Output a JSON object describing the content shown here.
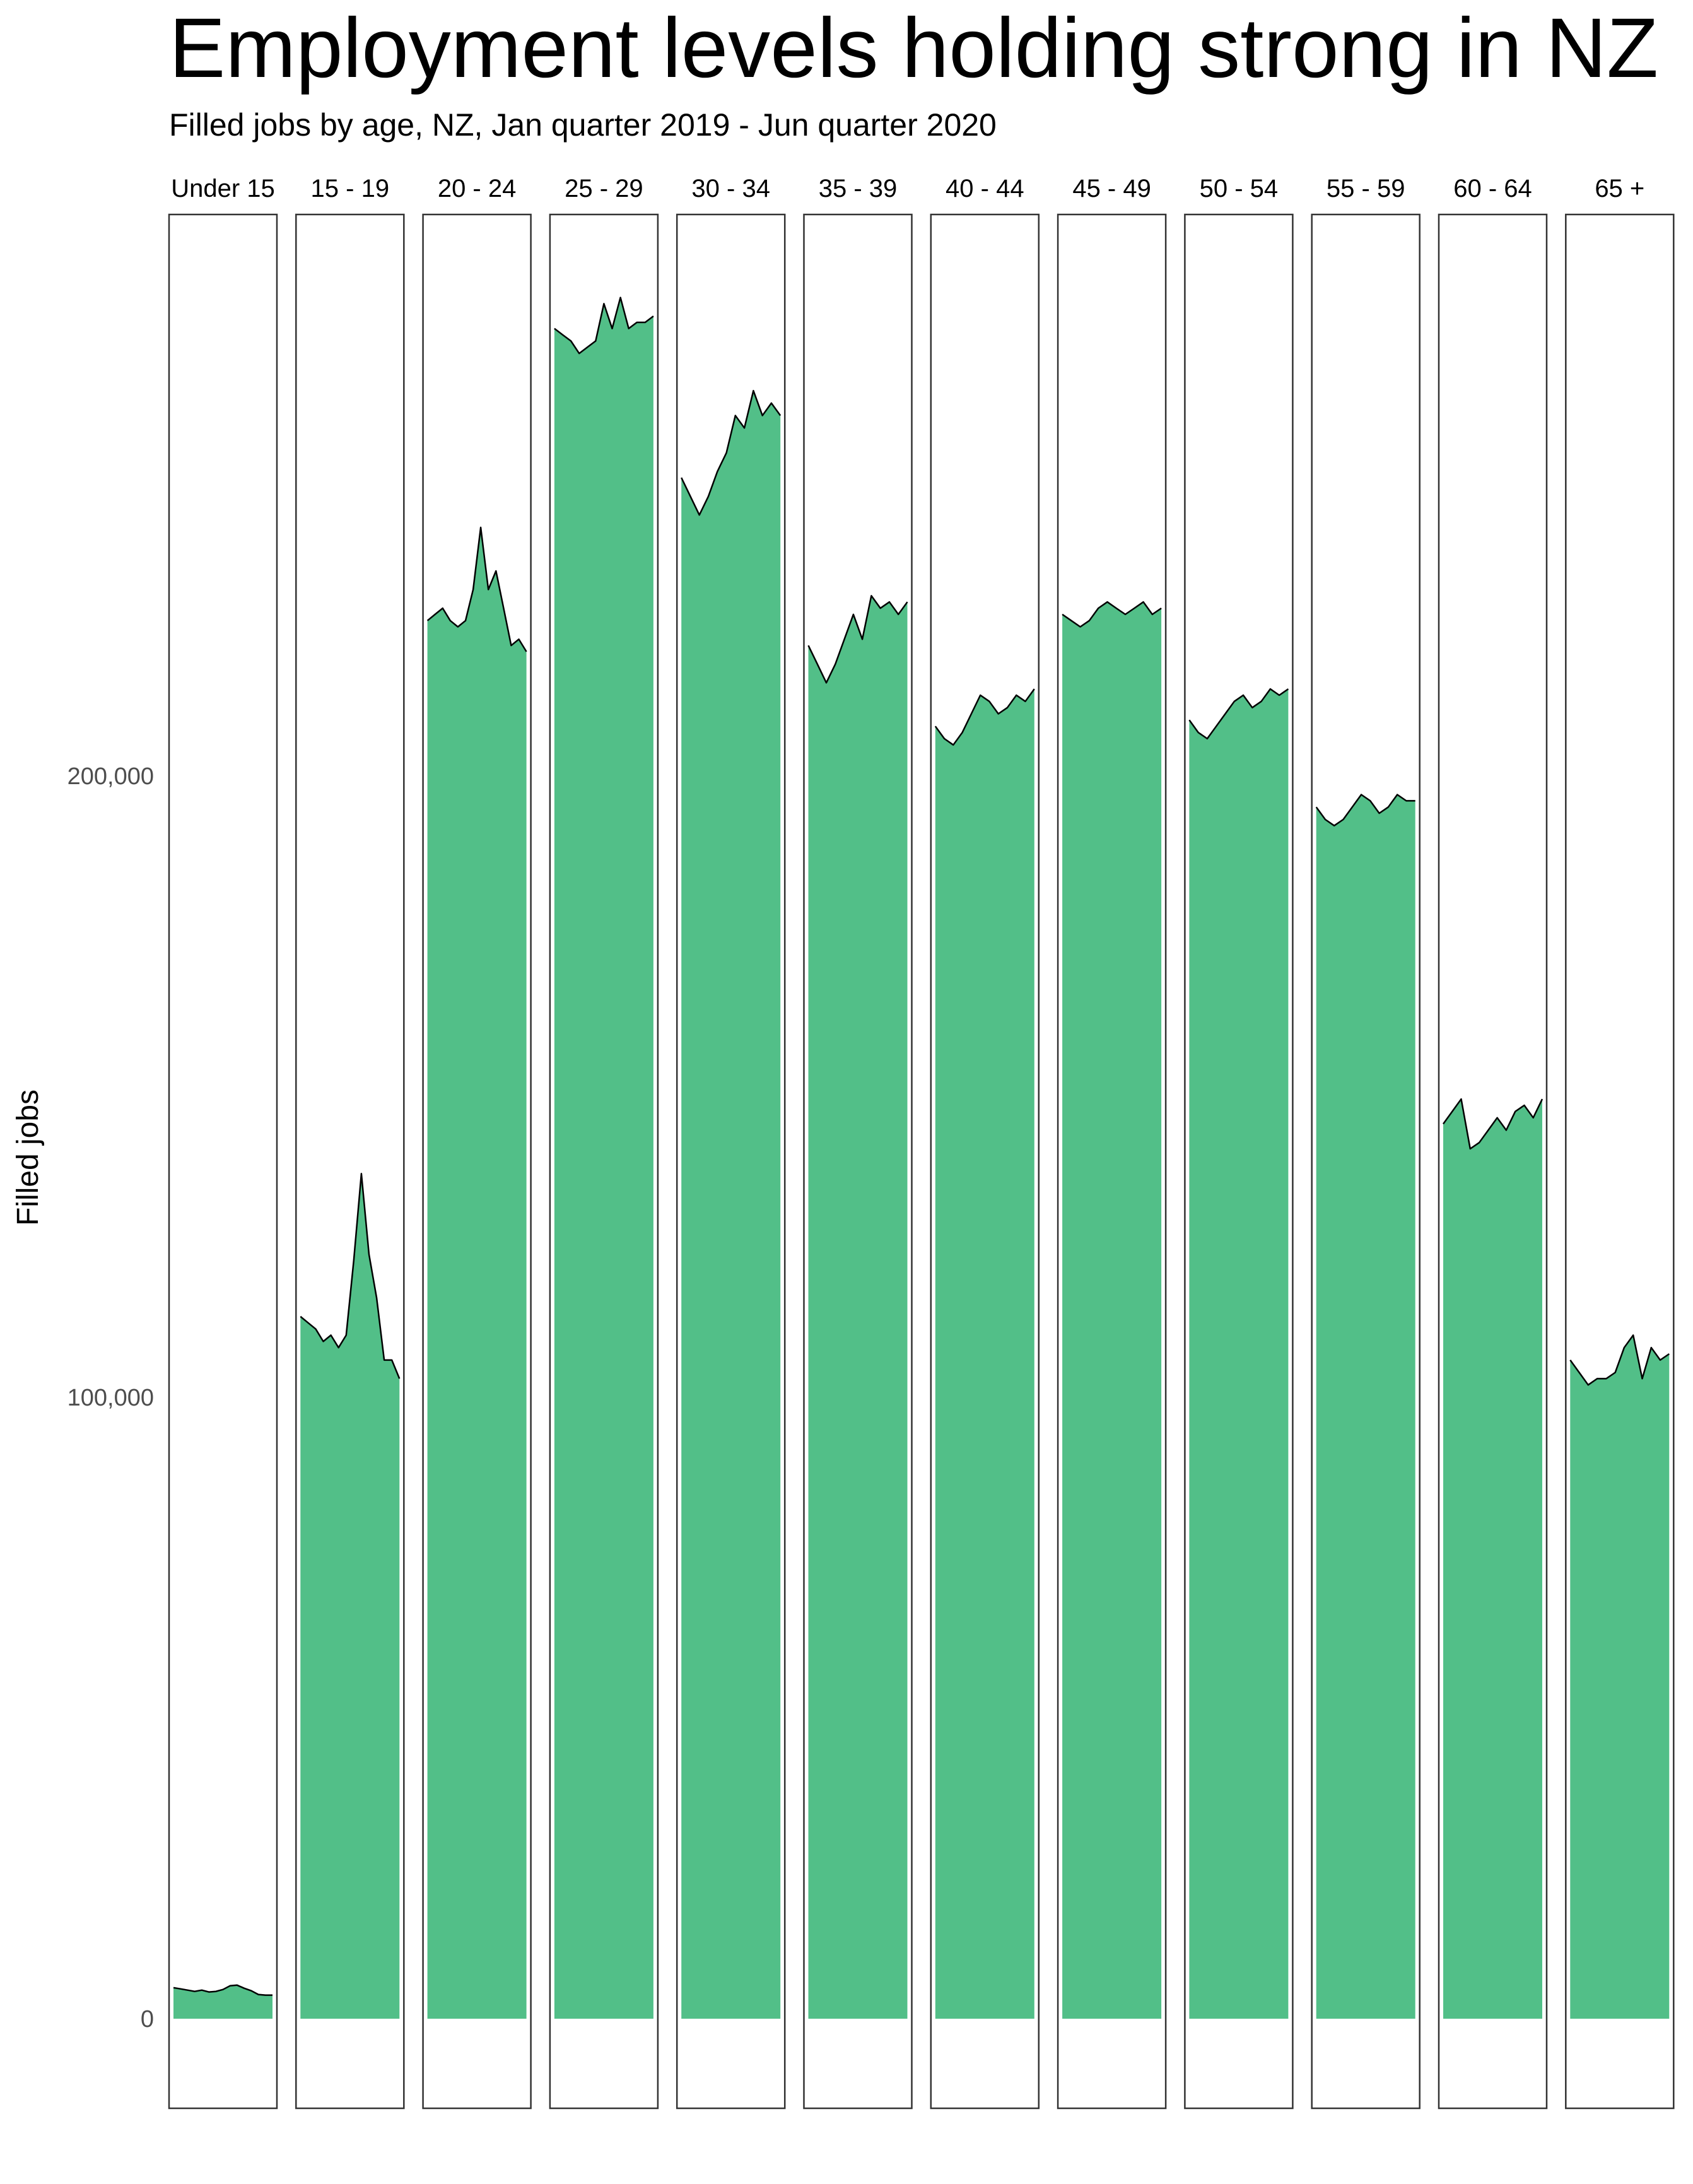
{
  "title": "Employment levels holding strong in NZ",
  "subtitle": "Filled jobs by age, NZ, Jan quarter 2019 - Jun quarter 2020",
  "colors": {
    "fill": "#52bf88",
    "line": "#000000",
    "panel_border": "#333333",
    "tick_text": "#4d4d4d"
  },
  "chart_data": {
    "type": "area",
    "title": "Employment levels holding strong in NZ",
    "subtitle": "Filled jobs by age, NZ, Jan quarter 2019 - Jun quarter 2020",
    "xlabel": "",
    "ylabel": "Filled jobs",
    "ylim": [
      -14000,
      288000
    ],
    "yticks": [
      0,
      100000,
      200000
    ],
    "ytick_labels": [
      "0",
      "100,000",
      "200,000"
    ],
    "grid": false,
    "legend": "none",
    "series": [
      {
        "name": "Under 15",
        "values": [
          5000,
          4800,
          4600,
          4400,
          4600,
          4300,
          4400,
          4700,
          5300,
          5400,
          4900,
          4500,
          3900,
          3800,
          3800
        ]
      },
      {
        "name": "15 - 19",
        "values": [
          113000,
          112000,
          111000,
          109000,
          110000,
          108000,
          110000,
          122000,
          136000,
          123000,
          116000,
          106000,
          106000,
          103000
        ]
      },
      {
        "name": "20 - 24",
        "values": [
          225000,
          226000,
          227000,
          225000,
          224000,
          225000,
          230000,
          240000,
          230000,
          233000,
          227000,
          221000,
          222000,
          220000
        ]
      },
      {
        "name": "25 - 29",
        "values": [
          272000,
          271000,
          270000,
          268000,
          269000,
          270000,
          276000,
          272000,
          277000,
          272000,
          273000,
          273000,
          274000
        ]
      },
      {
        "name": "30 - 34",
        "values": [
          248000,
          245000,
          242000,
          245000,
          249000,
          252000,
          258000,
          256000,
          262000,
          258000,
          260000,
          258000
        ]
      },
      {
        "name": "35 - 39",
        "values": [
          221000,
          218000,
          215000,
          218000,
          222000,
          226000,
          222000,
          229000,
          227000,
          228000,
          226000,
          228000
        ]
      },
      {
        "name": "40 - 44",
        "values": [
          208000,
          206000,
          205000,
          207000,
          210000,
          213000,
          212000,
          210000,
          211000,
          213000,
          212000,
          214000
        ]
      },
      {
        "name": "45 - 49",
        "values": [
          226000,
          225000,
          224000,
          225000,
          227000,
          228000,
          227000,
          226000,
          227000,
          228000,
          226000,
          227000
        ]
      },
      {
        "name": "50 - 54",
        "values": [
          209000,
          207000,
          206000,
          208000,
          210000,
          212000,
          213000,
          211000,
          212000,
          214000,
          213000,
          214000
        ]
      },
      {
        "name": "55 - 59",
        "values": [
          195000,
          193000,
          192000,
          193000,
          195000,
          197000,
          196000,
          194000,
          195000,
          197000,
          196000,
          196000
        ]
      },
      {
        "name": "60 - 64",
        "values": [
          144000,
          146000,
          148000,
          140000,
          141000,
          143000,
          145000,
          143000,
          146000,
          147000,
          145000,
          148000
        ]
      },
      {
        "name": "65 +",
        "values": [
          106000,
          104000,
          102000,
          103000,
          103000,
          104000,
          108000,
          110000,
          103000,
          108000,
          106000,
          107000
        ]
      }
    ]
  }
}
